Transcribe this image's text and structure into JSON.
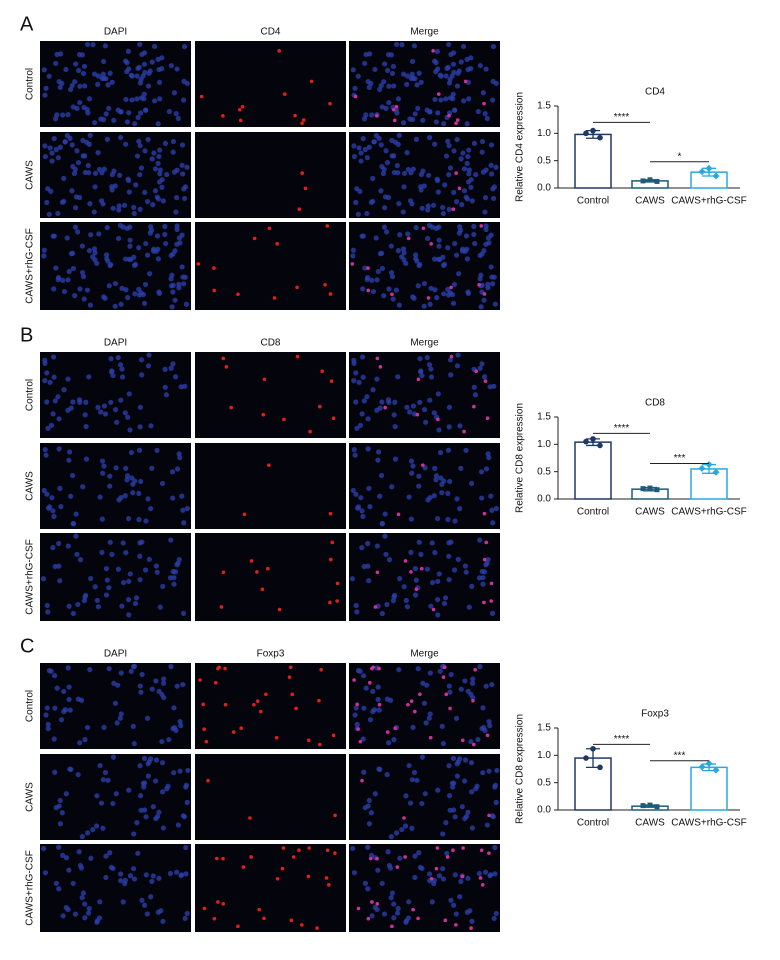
{
  "panels": [
    {
      "letter": "A",
      "columns": [
        "DAPI",
        "CD4",
        "Merge"
      ],
      "rows": [
        "Control",
        "CAWS",
        "CAWS+rhG-CSF"
      ]
    },
    {
      "letter": "B",
      "columns": [
        "DAPI",
        "CD8",
        "Merge"
      ],
      "rows": [
        "Control",
        "CAWS",
        "CAWS+rhG-CSF"
      ]
    },
    {
      "letter": "C",
      "columns": [
        "DAPI",
        "Foxp3",
        "Merge"
      ],
      "rows": [
        "Control",
        "CAWS",
        "CAWS+rhG-CSF"
      ]
    }
  ],
  "chart_data": [
    {
      "type": "bar",
      "title": "CD4",
      "y_label": "Relative CD4 expression",
      "categories": [
        "Control",
        "CAWS",
        "CAWS+rhG-CSF"
      ],
      "colors": [
        "#1f3864",
        "#1d5b78",
        "#29a8e0"
      ],
      "values": [
        0.98,
        0.13,
        0.29
      ],
      "errors": [
        0.07,
        0.02,
        0.07
      ],
      "points": [
        [
          1.05,
          1.0,
          0.92
        ],
        [
          0.15,
          0.13,
          0.12
        ],
        [
          0.36,
          0.3,
          0.22
        ]
      ],
      "ylim": [
        0,
        1.5
      ],
      "yticks": [
        {
          "value": 0,
          "label": "0.0"
        },
        0.5,
        {
          "value": 1,
          "label": "1.0"
        },
        1.5
      ],
      "annotations": [
        {
          "text": "****",
          "between": [
            0,
            1
          ],
          "y": 1.2
        },
        {
          "text": "*",
          "between": [
            1,
            2
          ],
          "y": 0.48
        }
      ]
    },
    {
      "type": "bar",
      "title": "CD8",
      "y_label": "Relative CD8 expression",
      "categories": [
        "Control",
        "CAWS",
        "CAWS+rhG-CSF"
      ],
      "colors": [
        "#1f3864",
        "#1d5b78",
        "#29a8e0"
      ],
      "values": [
        1.04,
        0.18,
        0.55
      ],
      "errors": [
        0.06,
        0.03,
        0.08
      ],
      "points": [
        [
          1.1,
          1.05,
          0.98
        ],
        [
          0.2,
          0.19,
          0.17
        ],
        [
          0.63,
          0.56,
          0.49
        ]
      ],
      "ylim": [
        0,
        1.5
      ],
      "yticks": [
        {
          "value": 0,
          "label": "0.0"
        },
        0.5,
        {
          "value": 1,
          "label": "1.0"
        },
        1.5
      ],
      "annotations": [
        {
          "text": "****",
          "between": [
            0,
            1
          ],
          "y": 1.2
        },
        {
          "text": "***",
          "between": [
            1,
            2
          ],
          "y": 0.65
        }
      ]
    },
    {
      "type": "bar",
      "title": "Foxp3",
      "y_label": "Relative CD8 expression",
      "categories": [
        "Control",
        "CAWS",
        "CAWS+rhG-CSF"
      ],
      "colors": [
        "#1f3864",
        "#1d5b78",
        "#29a8e0"
      ],
      "values": [
        0.95,
        0.07,
        0.78
      ],
      "errors": [
        0.17,
        0.02,
        0.06
      ],
      "points": [
        [
          1.12,
          0.95,
          0.78
        ],
        [
          0.09,
          0.08,
          0.06
        ],
        [
          0.85,
          0.79,
          0.73
        ]
      ],
      "ylim": [
        0,
        1.5
      ],
      "yticks": [
        {
          "value": 0,
          "label": "0.0"
        },
        0.5,
        {
          "value": 1,
          "label": "1.0"
        },
        1.5
      ],
      "annotations": [
        {
          "text": "****",
          "between": [
            0,
            1
          ],
          "y": 1.2
        },
        {
          "text": "***",
          "between": [
            1,
            2
          ],
          "y": 0.9
        }
      ]
    }
  ]
}
